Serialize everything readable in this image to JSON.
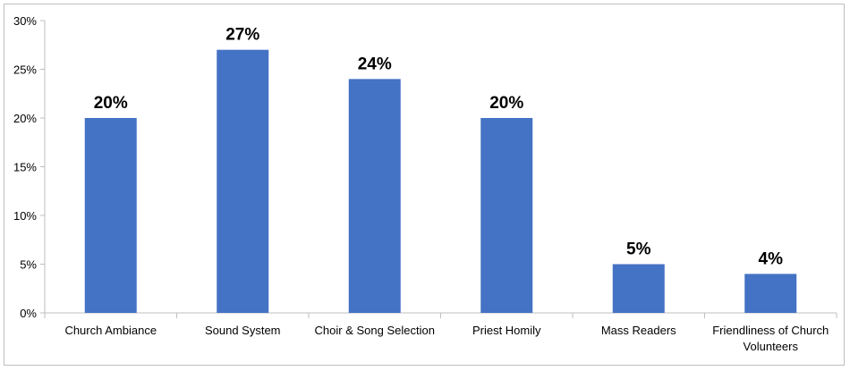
{
  "chart_data": {
    "type": "bar",
    "categories": [
      [
        "Church Ambiance"
      ],
      [
        "Sound System"
      ],
      [
        "Choir & Song Selection"
      ],
      [
        "Priest Homily"
      ],
      [
        "Mass Readers"
      ],
      [
        "Friendliness of Church",
        "Volunteers"
      ]
    ],
    "values": [
      20,
      27,
      24,
      20,
      5,
      4
    ],
    "data_labels": [
      "20%",
      "27%",
      "24%",
      "20%",
      "5%",
      "4%"
    ],
    "y_ticks": [
      "0%",
      "5%",
      "10%",
      "15%",
      "20%",
      "25%",
      "30%"
    ],
    "ylim": [
      0,
      30
    ],
    "y_unit": "percent",
    "title": "",
    "xlabel": "",
    "ylabel": "",
    "grid": false,
    "legend": "none",
    "bar_color": "#4472c4",
    "axis_color": "#bfbfbf"
  }
}
